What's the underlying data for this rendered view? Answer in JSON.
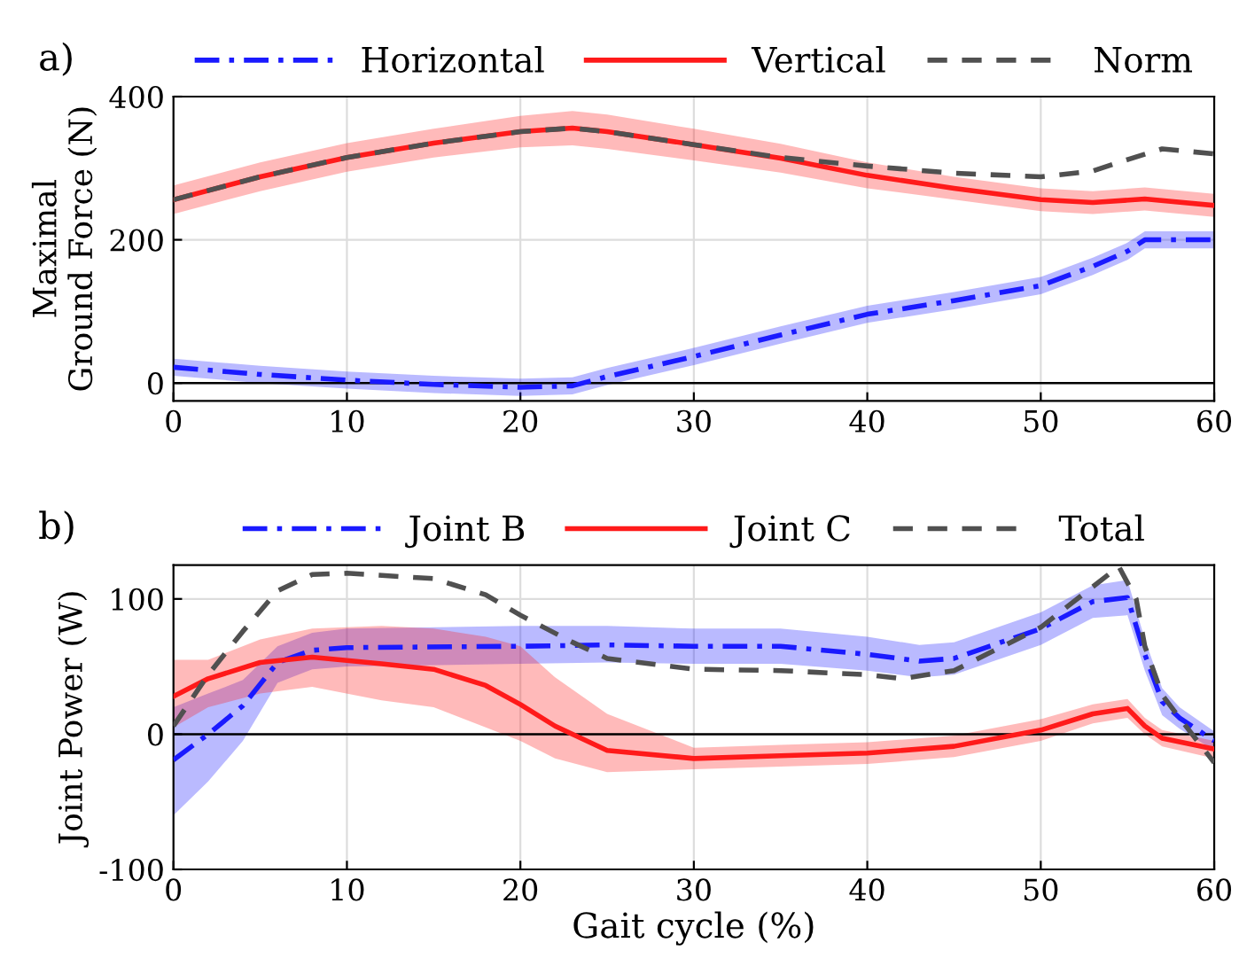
{
  "chart_data": [
    {
      "type": "line",
      "annotations": [
        "a)"
      ],
      "ylabel": "Maximal\nGround Force (N)",
      "xlim": [
        0,
        60
      ],
      "xticks": [
        0,
        10,
        20,
        30,
        40,
        50,
        60
      ],
      "ylim": [
        -25,
        400
      ],
      "yticks": [
        0,
        200,
        400
      ],
      "grid": true,
      "legend": "top",
      "ref_lines": [
        {
          "axis": "y",
          "value": 0,
          "color": "#000000"
        }
      ],
      "series": [
        {
          "name": "Horizontal",
          "color": "#1a1aff",
          "line_style": "dashdot",
          "x": [
            0,
            5,
            10,
            15,
            20,
            23,
            25,
            30,
            35,
            40,
            45,
            50,
            53,
            55,
            56,
            60
          ],
          "values": [
            22,
            12,
            4,
            -2,
            -6,
            -4,
            9,
            37,
            67,
            96,
            115,
            136,
            163,
            184,
            200,
            200
          ],
          "lower": [
            10,
            0,
            -8,
            -14,
            -18,
            -16,
            -3,
            25,
            55,
            84,
            103,
            124,
            151,
            172,
            188,
            188
          ],
          "upper": [
            34,
            24,
            16,
            10,
            6,
            8,
            21,
            49,
            79,
            108,
            127,
            148,
            175,
            196,
            212,
            212
          ]
        },
        {
          "name": "Vertical",
          "color": "#ff1a1a",
          "line_style": "solid",
          "x": [
            0,
            5,
            10,
            15,
            20,
            23,
            25,
            30,
            35,
            40,
            45,
            50,
            53,
            56,
            60
          ],
          "values": [
            256,
            288,
            315,
            335,
            351,
            356,
            351,
            333,
            314,
            290,
            272,
            256,
            252,
            257,
            248
          ],
          "lower": [
            236,
            268,
            295,
            315,
            329,
            332,
            327,
            311,
            294,
            272,
            256,
            240,
            236,
            241,
            232
          ],
          "upper": [
            276,
            308,
            335,
            355,
            373,
            380,
            375,
            355,
            334,
            308,
            288,
            272,
            268,
            273,
            264
          ]
        },
        {
          "name": "Norm",
          "color": "#505050",
          "line_style": "dashed",
          "x": [
            0,
            5,
            10,
            15,
            20,
            23,
            25,
            30,
            35,
            40,
            45,
            50,
            53,
            55,
            57,
            60
          ],
          "values": [
            256,
            288,
            315,
            335,
            351,
            356,
            351,
            333,
            315,
            303,
            293,
            288,
            296,
            312,
            327,
            320
          ]
        }
      ]
    },
    {
      "type": "line",
      "annotations": [
        "b)"
      ],
      "xlabel": "Gait cycle (%)",
      "ylabel": "Joint Power (W)",
      "xlim": [
        0,
        60
      ],
      "xticks": [
        0,
        10,
        20,
        30,
        40,
        50,
        60
      ],
      "ylim": [
        -100,
        125
      ],
      "yticks": [
        -100,
        0,
        100
      ],
      "grid": true,
      "legend": "top",
      "ref_lines": [
        {
          "axis": "y",
          "value": 0,
          "color": "#000000"
        }
      ],
      "series": [
        {
          "name": "Joint B",
          "color": "#1a1aff",
          "line_style": "dashdot",
          "x": [
            0,
            2,
            4,
            6,
            8,
            10,
            20,
            25,
            30,
            35,
            40,
            43,
            45,
            50,
            53,
            55,
            56,
            57,
            58,
            60
          ],
          "values": [
            -19,
            0,
            21,
            53,
            62,
            64,
            65,
            66,
            65,
            65,
            59,
            54,
            56,
            78,
            98,
            101,
            59,
            24,
            12,
            -5
          ],
          "lower": [
            -60,
            -35,
            -5,
            38,
            48,
            50,
            52,
            53,
            52,
            52,
            47,
            42,
            44,
            66,
            86,
            88,
            47,
            14,
            4,
            -12
          ],
          "upper": [
            20,
            30,
            40,
            65,
            75,
            78,
            80,
            80,
            78,
            78,
            72,
            66,
            68,
            90,
            110,
            114,
            70,
            34,
            20,
            2
          ]
        },
        {
          "name": "Joint C",
          "color": "#ff1a1a",
          "line_style": "solid",
          "x": [
            0,
            2,
            5,
            8,
            12,
            15,
            18,
            20,
            22,
            25,
            30,
            35,
            40,
            45,
            50,
            53,
            55,
            56,
            57,
            60
          ],
          "values": [
            28,
            41,
            53,
            57,
            52,
            48,
            36,
            22,
            6,
            -12,
            -18,
            -16,
            -14,
            -9,
            3,
            15,
            19,
            6,
            -3,
            -11
          ],
          "lower": [
            5,
            20,
            30,
            35,
            25,
            20,
            5,
            -5,
            -18,
            -28,
            -26,
            -24,
            -22,
            -17,
            -5,
            8,
            12,
            0,
            -9,
            -18
          ],
          "upper": [
            55,
            55,
            70,
            78,
            80,
            78,
            72,
            65,
            42,
            15,
            -10,
            -8,
            -6,
            -1,
            11,
            22,
            26,
            12,
            3,
            -5
          ]
        },
        {
          "name": "Total",
          "color": "#505050",
          "line_style": "dashed",
          "x": [
            0,
            2,
            4,
            6,
            8,
            10,
            15,
            18,
            20,
            23,
            25,
            30,
            35,
            40,
            42,
            45,
            50,
            53,
            54.5,
            55.5,
            56,
            57,
            58,
            60
          ],
          "values": [
            6,
            44,
            76,
            106,
            118,
            119,
            115,
            103,
            88,
            68,
            56,
            48,
            47,
            44,
            41,
            47,
            79,
            109,
            124,
            100,
            65,
            29,
            12,
            -21
          ]
        }
      ]
    }
  ]
}
